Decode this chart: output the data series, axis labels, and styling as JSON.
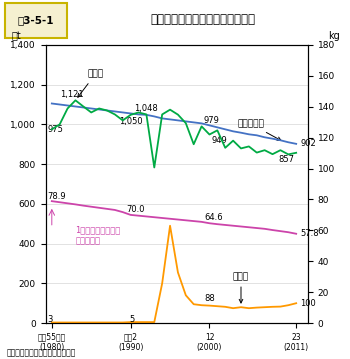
{
  "ylabel_left": "万t",
  "ylabel_right": "kg",
  "ylim_left": [
    0,
    1400
  ],
  "ylim_right": [
    0,
    180
  ],
  "yticks_left": [
    0,
    200,
    400,
    600,
    800,
    1000,
    1200,
    1400
  ],
  "yticks_right": [
    0,
    20,
    40,
    60,
    80,
    100,
    120,
    140,
    160,
    180
  ],
  "source": "資料：農林水産省「食料需給表」",
  "fig3label": "図3-5-1",
  "fig3title": "米の生産量、消費仕向量等の推移",
  "title_bg": "#F5F0D0",
  "title_border": "#C8B400",
  "consumption_line": {
    "x": [
      1980,
      1981,
      1982,
      1983,
      1984,
      1985,
      1986,
      1987,
      1988,
      1989,
      1990,
      1991,
      1992,
      1993,
      1994,
      1995,
      1996,
      1997,
      1998,
      1999,
      2000,
      2001,
      2002,
      2003,
      2004,
      2005,
      2006,
      2007,
      2008,
      2009,
      2010,
      2011
    ],
    "y": [
      1105,
      1100,
      1095,
      1090,
      1085,
      1080,
      1075,
      1070,
      1065,
      1060,
      1055,
      1050,
      1048,
      1040,
      1030,
      1025,
      1020,
      1015,
      1010,
      1005,
      995,
      985,
      975,
      965,
      958,
      950,
      945,
      935,
      928,
      920,
      910,
      902
    ],
    "color": "#4472C4",
    "label": "消費仕向量"
  },
  "production_line": {
    "x": [
      1980,
      1981,
      1982,
      1983,
      1984,
      1985,
      1986,
      1987,
      1988,
      1989,
      1990,
      1991,
      1992,
      1993,
      1994,
      1995,
      1996,
      1997,
      1998,
      1999,
      2000,
      2001,
      2002,
      2003,
      2004,
      2005,
      2006,
      2007,
      2008,
      2009,
      2010,
      2011
    ],
    "y": [
      975,
      1000,
      1080,
      1121,
      1090,
      1060,
      1080,
      1070,
      1050,
      1020,
      1048,
      1060,
      1050,
      783,
      1050,
      1074,
      1049,
      1006,
      900,
      990,
      949,
      970,
      882,
      918,
      879,
      889,
      858,
      870,
      850,
      870,
      849,
      857
    ],
    "color": "#00AA44",
    "label": "生産量"
  },
  "percapita_line": {
    "x": [
      1980,
      1981,
      1982,
      1983,
      1984,
      1985,
      1986,
      1987,
      1988,
      1989,
      1990,
      1991,
      1992,
      1993,
      1994,
      1995,
      1996,
      1997,
      1998,
      1999,
      2000,
      2001,
      2002,
      2003,
      2004,
      2005,
      2006,
      2007,
      2008,
      2009,
      2010,
      2011
    ],
    "y": [
      78.9,
      78.2,
      77.5,
      76.8,
      76.0,
      75.3,
      74.6,
      73.9,
      73.2,
      71.8,
      70.0,
      69.5,
      69.0,
      68.5,
      68.0,
      67.5,
      67.0,
      66.5,
      66.0,
      65.5,
      64.6,
      64.0,
      63.5,
      63.0,
      62.5,
      62.0,
      61.5,
      61.0,
      60.2,
      59.5,
      58.8,
      57.8
    ],
    "color": "#CC44AA",
    "label": "1人当たり供給数量（右目盛）"
  },
  "import_line": {
    "x": [
      1980,
      1981,
      1982,
      1983,
      1984,
      1985,
      1986,
      1987,
      1988,
      1989,
      1990,
      1991,
      1992,
      1993,
      1994,
      1995,
      1996,
      1997,
      1998,
      1999,
      2000,
      2001,
      2002,
      2003,
      2004,
      2005,
      2006,
      2007,
      2008,
      2009,
      2010,
      2011
    ],
    "y": [
      3,
      3,
      3,
      3,
      3,
      3,
      3,
      3,
      3,
      3,
      5,
      5,
      5,
      5,
      200,
      490,
      255,
      140,
      95,
      90,
      88,
      85,
      82,
      75,
      80,
      75,
      78,
      80,
      82,
      83,
      90,
      100
    ],
    "color": "#FF9900",
    "label": "輸入量"
  },
  "bg_color": "#FFFFFF"
}
